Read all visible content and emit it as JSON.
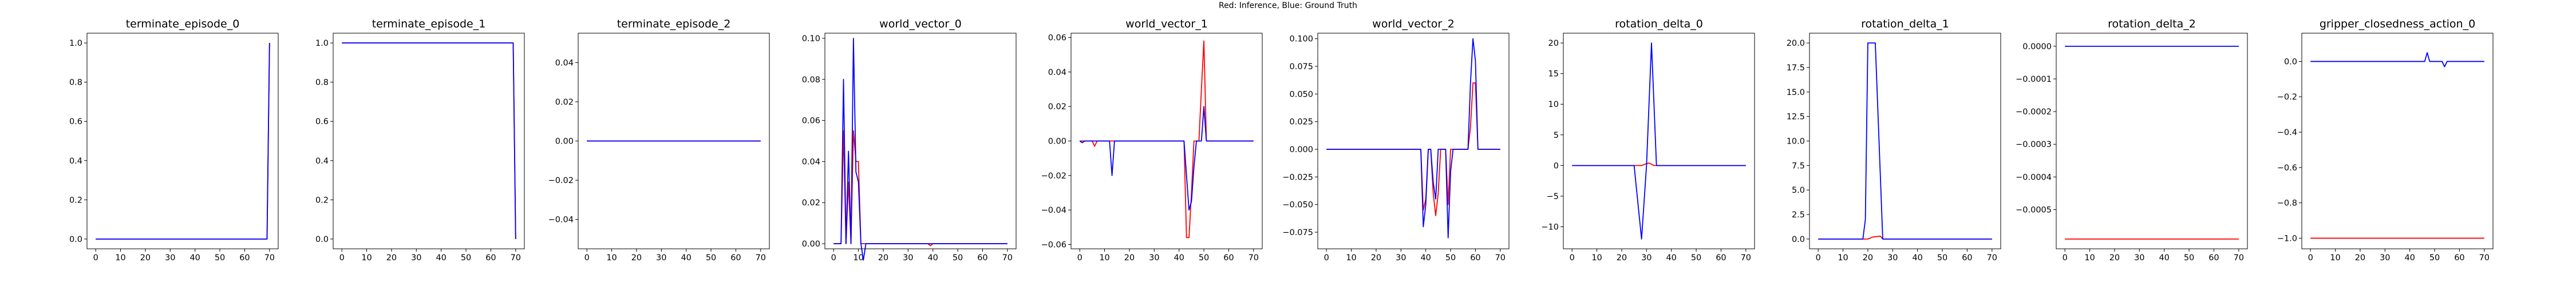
{
  "figure": {
    "suptitle": "Red: Inference, Blue: Ground Truth"
  },
  "colors": {
    "inference": "#ff0000",
    "ground_truth": "#0000ff"
  },
  "chart_data": [
    {
      "type": "line",
      "title": "terminate_episode_0",
      "xlim": [
        -3.5,
        73.5
      ],
      "ylim": [
        -0.05,
        1.05
      ],
      "xticks": [
        "0",
        "10",
        "20",
        "30",
        "40",
        "50",
        "60",
        "70"
      ],
      "yticks": [
        {
          "v": 0,
          "label": "0.0"
        },
        {
          "v": 0.2,
          "label": "0.2"
        },
        {
          "v": 0.4,
          "label": "0.4"
        },
        {
          "v": 0.6,
          "label": "0.6"
        },
        {
          "v": 0.8,
          "label": "0.8"
        },
        {
          "v": 1.0,
          "label": "1.0"
        }
      ],
      "series": [
        {
          "role": "inference",
          "points": [
            [
              0,
              0
            ],
            [
              69,
              0
            ],
            [
              70,
              1
            ]
          ]
        },
        {
          "role": "ground_truth",
          "points": [
            [
              0,
              0
            ],
            [
              69,
              0
            ],
            [
              70,
              1
            ]
          ]
        }
      ]
    },
    {
      "type": "line",
      "title": "terminate_episode_1",
      "xlim": [
        -3.5,
        73.5
      ],
      "ylim": [
        -0.05,
        1.05
      ],
      "xticks": [
        "0",
        "10",
        "20",
        "30",
        "40",
        "50",
        "60",
        "70"
      ],
      "yticks": [
        {
          "v": 0,
          "label": "0.0"
        },
        {
          "v": 0.2,
          "label": "0.2"
        },
        {
          "v": 0.4,
          "label": "0.4"
        },
        {
          "v": 0.6,
          "label": "0.6"
        },
        {
          "v": 0.8,
          "label": "0.8"
        },
        {
          "v": 1.0,
          "label": "1.0"
        }
      ],
      "series": [
        {
          "role": "inference",
          "points": [
            [
              0,
              1
            ],
            [
              69,
              1
            ],
            [
              70,
              0
            ]
          ]
        },
        {
          "role": "ground_truth",
          "points": [
            [
              0,
              1
            ],
            [
              69,
              1
            ],
            [
              70,
              0
            ]
          ]
        }
      ]
    },
    {
      "type": "line",
      "title": "terminate_episode_2",
      "xlim": [
        -3.5,
        73.5
      ],
      "ylim": [
        -0.055,
        0.055
      ],
      "xticks": [
        "0",
        "10",
        "20",
        "30",
        "40",
        "50",
        "60",
        "70"
      ],
      "yticks": [
        {
          "v": -0.04,
          "label": "−0.04"
        },
        {
          "v": -0.02,
          "label": "−0.02"
        },
        {
          "v": 0,
          "label": "0.00"
        },
        {
          "v": 0.02,
          "label": "0.02"
        },
        {
          "v": 0.04,
          "label": "0.04"
        }
      ],
      "series": [
        {
          "role": "inference",
          "points": [
            [
              0,
              0
            ],
            [
              70,
              0
            ]
          ]
        },
        {
          "role": "ground_truth",
          "points": [
            [
              0,
              0
            ],
            [
              70,
              0
            ]
          ]
        }
      ]
    },
    {
      "type": "line",
      "title": "world_vector_0",
      "xlim": [
        -3.5,
        73.5
      ],
      "ylim": [
        -0.0025,
        0.1025
      ],
      "xticks": [
        "0",
        "10",
        "20",
        "30",
        "40",
        "50",
        "60",
        "70"
      ],
      "yticks": [
        {
          "v": 0,
          "label": "0.00"
        },
        {
          "v": 0.02,
          "label": "0.02"
        },
        {
          "v": 0.04,
          "label": "0.04"
        },
        {
          "v": 0.06,
          "label": "0.06"
        },
        {
          "v": 0.08,
          "label": "0.08"
        },
        {
          "v": 0.1,
          "label": "0.10"
        }
      ],
      "series": [
        {
          "role": "inference",
          "points": [
            [
              0,
              0
            ],
            [
              3,
              0
            ],
            [
              4,
              0.055
            ],
            [
              5,
              0
            ],
            [
              6,
              0.03
            ],
            [
              7,
              0
            ],
            [
              8,
              0.055
            ],
            [
              9,
              0.04
            ],
            [
              10,
              0.04
            ],
            [
              11,
              0
            ],
            [
              38,
              0
            ],
            [
              39,
              -0.001
            ],
            [
              40,
              0
            ],
            [
              70,
              0
            ]
          ]
        },
        {
          "role": "ground_truth",
          "points": [
            [
              0,
              0
            ],
            [
              3,
              0
            ],
            [
              4,
              0.08
            ],
            [
              5,
              0
            ],
            [
              6,
              0.045
            ],
            [
              7,
              0.0
            ],
            [
              8,
              0.1
            ],
            [
              9,
              0.035
            ],
            [
              10,
              0.03
            ],
            [
              11,
              0
            ],
            [
              12,
              -0.008
            ],
            [
              13,
              0
            ],
            [
              70,
              0
            ]
          ]
        }
      ]
    },
    {
      "type": "line",
      "title": "world_vector_1",
      "xlim": [
        -3.5,
        73.5
      ],
      "ylim": [
        -0.0625,
        0.0625
      ],
      "xticks": [
        "0",
        "10",
        "20",
        "30",
        "40",
        "50",
        "60",
        "70"
      ],
      "yticks": [
        {
          "v": -0.06,
          "label": "−0.06"
        },
        {
          "v": -0.04,
          "label": "−0.04"
        },
        {
          "v": -0.02,
          "label": "−0.02"
        },
        {
          "v": 0,
          "label": "0.00"
        },
        {
          "v": 0.02,
          "label": "0.02"
        },
        {
          "v": 0.04,
          "label": "0.04"
        },
        {
          "v": 0.06,
          "label": "0.06"
        }
      ],
      "series": [
        {
          "role": "inference",
          "points": [
            [
              0,
              0
            ],
            [
              5,
              0
            ],
            [
              6,
              -0.003
            ],
            [
              7,
              0
            ],
            [
              42,
              0
            ],
            [
              43,
              -0.056
            ],
            [
              44,
              -0.056
            ],
            [
              45,
              -0.03
            ],
            [
              46,
              0
            ],
            [
              48,
              0
            ],
            [
              49,
              0.03
            ],
            [
              50,
              0.058
            ],
            [
              51,
              0
            ],
            [
              70,
              0
            ]
          ]
        },
        {
          "role": "ground_truth",
          "points": [
            [
              0,
              0
            ],
            [
              1,
              -0.001
            ],
            [
              2,
              0
            ],
            [
              12,
              0
            ],
            [
              13,
              -0.02
            ],
            [
              14,
              0
            ],
            [
              42,
              0
            ],
            [
              43,
              -0.02
            ],
            [
              44,
              -0.04
            ],
            [
              45,
              -0.035
            ],
            [
              46,
              -0.015
            ],
            [
              47,
              0
            ],
            [
              48,
              0
            ],
            [
              49,
              0
            ],
            [
              50,
              0.02
            ],
            [
              51,
              0
            ],
            [
              70,
              0
            ]
          ]
        }
      ]
    },
    {
      "type": "line",
      "title": "world_vector_2",
      "xlim": [
        -3.5,
        73.5
      ],
      "ylim": [
        -0.09,
        0.105
      ],
      "xticks": [
        "0",
        "10",
        "20",
        "30",
        "40",
        "50",
        "60",
        "70"
      ],
      "yticks": [
        {
          "v": -0.075,
          "label": "−0.075"
        },
        {
          "v": -0.05,
          "label": "−0.050"
        },
        {
          "v": -0.025,
          "label": "−0.025"
        },
        {
          "v": 0,
          "label": "0.000"
        },
        {
          "v": 0.025,
          "label": "0.025"
        },
        {
          "v": 0.05,
          "label": "0.050"
        },
        {
          "v": 0.075,
          "label": "0.075"
        },
        {
          "v": 0.1,
          "label": "0.100"
        }
      ],
      "series": [
        {
          "role": "inference",
          "points": [
            [
              0,
              0
            ],
            [
              38,
              0
            ],
            [
              39,
              -0.055
            ],
            [
              40,
              -0.045
            ],
            [
              41,
              0
            ],
            [
              42,
              0
            ],
            [
              43,
              -0.04
            ],
            [
              44,
              -0.06
            ],
            [
              45,
              -0.04
            ],
            [
              46,
              0
            ],
            [
              48,
              0
            ],
            [
              49,
              -0.05
            ],
            [
              50,
              0
            ],
            [
              57,
              0
            ],
            [
              58,
              0.02
            ],
            [
              59,
              0.06
            ],
            [
              60,
              0.06
            ],
            [
              61,
              0
            ],
            [
              70,
              0
            ]
          ]
        },
        {
          "role": "ground_truth",
          "points": [
            [
              0,
              0
            ],
            [
              38,
              0
            ],
            [
              39,
              -0.07
            ],
            [
              40,
              -0.05
            ],
            [
              41,
              0
            ],
            [
              42,
              0
            ],
            [
              43,
              -0.03
            ],
            [
              44,
              -0.045
            ],
            [
              45,
              0
            ],
            [
              48,
              0
            ],
            [
              49,
              -0.08
            ],
            [
              50,
              -0.02
            ],
            [
              51,
              0
            ],
            [
              57,
              0
            ],
            [
              58,
              0.06
            ],
            [
              59,
              0.1
            ],
            [
              60,
              0.08
            ],
            [
              61,
              0
            ],
            [
              70,
              0
            ]
          ]
        }
      ]
    },
    {
      "type": "line",
      "title": "rotation_delta_0",
      "xlim": [
        -3.5,
        73.5
      ],
      "ylim": [
        -13.6,
        21.6
      ],
      "xticks": [
        "0",
        "10",
        "20",
        "30",
        "40",
        "50",
        "60",
        "70"
      ],
      "yticks": [
        {
          "v": -10,
          "label": "−10"
        },
        {
          "v": -5,
          "label": "−5"
        },
        {
          "v": 0,
          "label": "0"
        },
        {
          "v": 5,
          "label": "5"
        },
        {
          "v": 10,
          "label": "10"
        },
        {
          "v": 15,
          "label": "15"
        },
        {
          "v": 20,
          "label": "20"
        }
      ],
      "series": [
        {
          "role": "inference",
          "points": [
            [
              0,
              0
            ],
            [
              28,
              0
            ],
            [
              30,
              0.3
            ],
            [
              31,
              0.4
            ],
            [
              33,
              0
            ],
            [
              70,
              0
            ]
          ]
        },
        {
          "role": "ground_truth",
          "points": [
            [
              0,
              0
            ],
            [
              25,
              0
            ],
            [
              28,
              -12
            ],
            [
              30,
              0
            ],
            [
              32,
              20
            ],
            [
              34,
              0
            ],
            [
              70,
              0
            ]
          ]
        }
      ]
    },
    {
      "type": "line",
      "title": "rotation_delta_1",
      "xlim": [
        -3.5,
        73.5
      ],
      "ylim": [
        -1,
        21
      ],
      "xticks": [
        "0",
        "10",
        "20",
        "30",
        "40",
        "50",
        "60",
        "70"
      ],
      "yticks": [
        {
          "v": 0,
          "label": "0.0"
        },
        {
          "v": 2.5,
          "label": "2.5"
        },
        {
          "v": 5,
          "label": "5.0"
        },
        {
          "v": 7.5,
          "label": "7.5"
        },
        {
          "v": 10,
          "label": "10.0"
        },
        {
          "v": 12.5,
          "label": "12.5"
        },
        {
          "v": 15,
          "label": "15.0"
        },
        {
          "v": 17.5,
          "label": "17.5"
        },
        {
          "v": 20,
          "label": "20.0"
        }
      ],
      "series": [
        {
          "role": "inference",
          "points": [
            [
              0,
              0
            ],
            [
              20,
              0
            ],
            [
              22,
              0.2
            ],
            [
              25,
              0.3
            ],
            [
              26,
              0
            ],
            [
              70,
              0
            ]
          ]
        },
        {
          "role": "ground_truth",
          "points": [
            [
              0,
              0
            ],
            [
              18,
              0
            ],
            [
              19,
              2
            ],
            [
              20,
              20
            ],
            [
              23,
              20
            ],
            [
              26,
              0
            ],
            [
              70,
              0
            ]
          ]
        }
      ]
    },
    {
      "type": "line",
      "title": "rotation_delta_2",
      "xlim": [
        -3.5,
        73.5
      ],
      "ylim": [
        -0.00062,
        4e-05
      ],
      "xticks": [
        "0",
        "10",
        "20",
        "30",
        "40",
        "50",
        "60",
        "70"
      ],
      "yticks": [
        {
          "v": -0.0005,
          "label": "−0.0005"
        },
        {
          "v": -0.0004,
          "label": "−0.0004"
        },
        {
          "v": -0.0003,
          "label": "−0.0003"
        },
        {
          "v": -0.0002,
          "label": "−0.0002"
        },
        {
          "v": -0.0001,
          "label": "−0.0001"
        },
        {
          "v": 0,
          "label": "0.0000"
        }
      ],
      "series": [
        {
          "role": "inference",
          "points": [
            [
              0,
              -0.00059
            ],
            [
              70,
              -0.00059
            ]
          ]
        },
        {
          "role": "ground_truth",
          "points": [
            [
              0,
              0
            ],
            [
              70,
              0
            ]
          ]
        }
      ]
    },
    {
      "type": "line",
      "title": "gripper_closedness_action_0",
      "xlim": [
        -3.5,
        73.5
      ],
      "ylim": [
        -1.06,
        0.16
      ],
      "xticks": [
        "0",
        "10",
        "20",
        "30",
        "40",
        "50",
        "60",
        "70"
      ],
      "yticks": [
        {
          "v": -1.0,
          "label": "−1.0"
        },
        {
          "v": -0.8,
          "label": "−0.8"
        },
        {
          "v": -0.6,
          "label": "−0.6"
        },
        {
          "v": -0.4,
          "label": "−0.4"
        },
        {
          "v": -0.2,
          "label": "−0.2"
        },
        {
          "v": 0,
          "label": "0.0"
        }
      ],
      "series": [
        {
          "role": "inference",
          "points": [
            [
              0,
              -1
            ],
            [
              70,
              -1
            ]
          ]
        },
        {
          "role": "ground_truth",
          "points": [
            [
              0,
              0
            ],
            [
              46,
              0
            ],
            [
              47,
              0.05
            ],
            [
              48,
              0
            ],
            [
              53,
              0
            ],
            [
              54,
              -0.03
            ],
            [
              55,
              0
            ],
            [
              70,
              0
            ]
          ]
        }
      ]
    }
  ]
}
